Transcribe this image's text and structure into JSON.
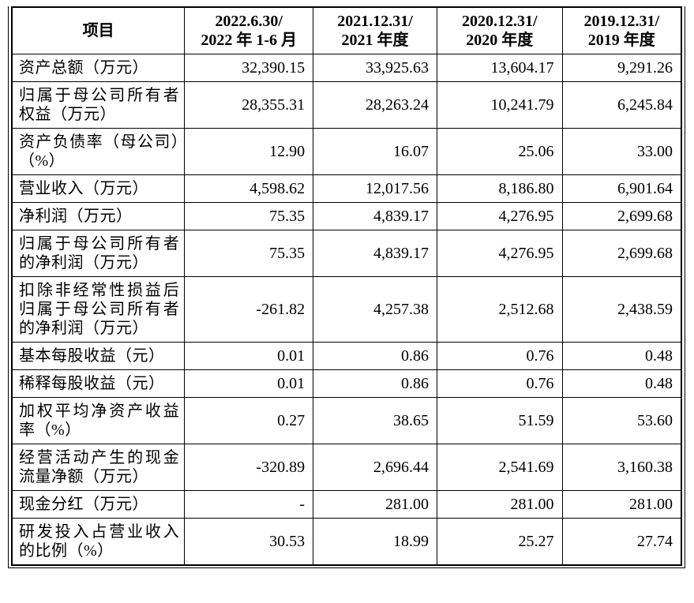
{
  "page": {
    "background_color": "#ffffff",
    "border_color": "#000000",
    "text_color": "#000000"
  },
  "table": {
    "columns": {
      "item": "项目",
      "periods": [
        {
          "line1": "2022.6.30/",
          "line2": "2022 年 1-6 月"
        },
        {
          "line1": "2021.12.31/",
          "line2": "2021 年度"
        },
        {
          "line1": "2020.12.31/",
          "line2": "2020 年度"
        },
        {
          "line1": "2019.12.31/",
          "line2": "2019 年度"
        }
      ]
    },
    "rows": [
      {
        "label": "资产总额（万元）",
        "values": [
          "32,390.15",
          "33,925.63",
          "13,604.17",
          "9,291.26"
        ]
      },
      {
        "label": "归属于母公司所有者权益（万元）",
        "values": [
          "28,355.31",
          "28,263.24",
          "10,241.79",
          "6,245.84"
        ]
      },
      {
        "label": "资产负债率（母公司）（%）",
        "values": [
          "12.90",
          "16.07",
          "25.06",
          "33.00"
        ]
      },
      {
        "label": "营业收入（万元）",
        "values": [
          "4,598.62",
          "12,017.56",
          "8,186.80",
          "6,901.64"
        ]
      },
      {
        "label": "净利润（万元）",
        "values": [
          "75.35",
          "4,839.17",
          "4,276.95",
          "2,699.68"
        ]
      },
      {
        "label": "归属于母公司所有者的净利润（万元）",
        "values": [
          "75.35",
          "4,839.17",
          "4,276.95",
          "2,699.68"
        ]
      },
      {
        "label": "扣除非经常性损益后归属于母公司所有者的净利润（万元）",
        "values": [
          "-261.82",
          "4,257.38",
          "2,512.68",
          "2,438.59"
        ]
      },
      {
        "label": "基本每股收益（元）",
        "values": [
          "0.01",
          "0.86",
          "0.76",
          "0.48"
        ]
      },
      {
        "label": "稀释每股收益（元）",
        "values": [
          "0.01",
          "0.86",
          "0.76",
          "0.48"
        ]
      },
      {
        "label": "加权平均净资产收益率（%）",
        "values": [
          "0.27",
          "38.65",
          "51.59",
          "53.60"
        ]
      },
      {
        "label": "经营活动产生的现金流量净额（万元）",
        "values": [
          "-320.89",
          "2,696.44",
          "2,541.69",
          "3,160.38"
        ]
      },
      {
        "label": "现金分红（万元）",
        "values": [
          "-",
          "281.00",
          "281.00",
          "281.00"
        ]
      },
      {
        "label": "研发投入占营业收入的比例（%）",
        "values": [
          "30.53",
          "18.99",
          "25.27",
          "27.74"
        ]
      }
    ]
  }
}
